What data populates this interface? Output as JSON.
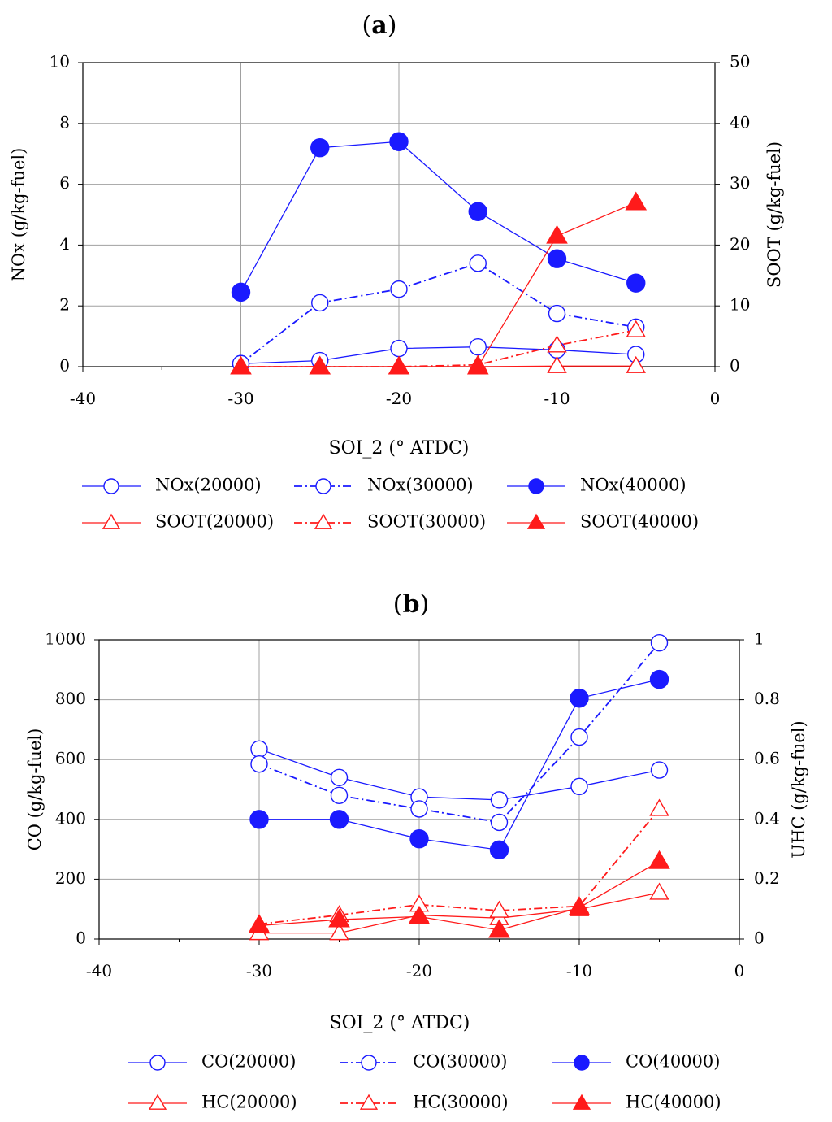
{
  "colors": {
    "blue": "#1a1aff",
    "red": "#ff1a1a",
    "grid": "#a0a0a0",
    "axis": "#000000"
  },
  "chart_data": [
    {
      "type": "line",
      "panel_label": "a",
      "xlabel": "SOI_2 (° ATDC)",
      "ylabel": "NOx (g/kg-fuel)",
      "y2label": "SOOT (g/kg-fuel)",
      "xlim": [
        -40,
        0
      ],
      "ylim": [
        0,
        10
      ],
      "y2lim": [
        0,
        50
      ],
      "xticks": [
        -40,
        -30,
        -20,
        -10,
        0
      ],
      "yticks": [
        0,
        2,
        4,
        6,
        8,
        10
      ],
      "y2ticks": [
        0,
        10,
        20,
        30,
        40,
        50
      ],
      "x": [
        -30,
        -25,
        -20,
        -15,
        -10,
        -5
      ],
      "series": [
        {
          "name": "NOx(20000)",
          "axis": "left",
          "color": "blue",
          "marker": "circle-open",
          "dash": "solid",
          "values": [
            0.1,
            0.2,
            0.6,
            0.65,
            0.55,
            0.4
          ]
        },
        {
          "name": "NOx(30000)",
          "axis": "left",
          "color": "blue",
          "marker": "circle-open",
          "dash": "dashdot",
          "values": [
            0.1,
            2.1,
            2.55,
            3.4,
            1.75,
            1.3
          ]
        },
        {
          "name": "NOx(40000)",
          "axis": "left",
          "color": "blue",
          "marker": "circle-filled",
          "dash": "solid",
          "values": [
            2.45,
            7.2,
            7.4,
            5.1,
            3.55,
            2.75
          ]
        },
        {
          "name": "SOOT(20000)",
          "axis": "right",
          "color": "red",
          "marker": "triangle-open",
          "dash": "solid",
          "values": [
            0,
            0,
            0,
            0,
            0.1,
            0.1
          ]
        },
        {
          "name": "SOOT(30000)",
          "axis": "right",
          "color": "red",
          "marker": "triangle-open",
          "dash": "dashdot",
          "values": [
            0,
            0,
            0,
            0.3,
            3.5,
            6
          ]
        },
        {
          "name": "SOOT(40000)",
          "axis": "right",
          "color": "red",
          "marker": "triangle-filled",
          "dash": "solid",
          "values": [
            0,
            0,
            0,
            0,
            21.5,
            27
          ]
        }
      ]
    },
    {
      "type": "line",
      "panel_label": "b",
      "xlabel": "SOI_2  (° ATDC)",
      "ylabel": "CO (g/kg-fuel)",
      "y2label": "UHC  (g/kg-fuel)",
      "xlim": [
        -40,
        0
      ],
      "ylim": [
        0,
        1000
      ],
      "y2lim": [
        0,
        1
      ],
      "xticks": [
        -40,
        -30,
        -20,
        -10,
        0
      ],
      "yticks": [
        0,
        200,
        400,
        600,
        800,
        1000
      ],
      "y2ticks": [
        0,
        0.2,
        0.4,
        0.6,
        0.8,
        1
      ],
      "x": [
        -30,
        -25,
        -20,
        -15,
        -10,
        -5
      ],
      "series": [
        {
          "name": "CO(20000)",
          "axis": "left",
          "color": "blue",
          "marker": "circle-open",
          "dash": "solid",
          "values": [
            635,
            540,
            475,
            465,
            510,
            565
          ]
        },
        {
          "name": "CO(30000)",
          "axis": "left",
          "color": "blue",
          "marker": "circle-open",
          "dash": "dashdot",
          "values": [
            585,
            480,
            435,
            390,
            675,
            990
          ]
        },
        {
          "name": "CO(40000)",
          "axis": "left",
          "color": "blue",
          "marker": "circle-filled",
          "dash": "solid",
          "values": [
            400,
            400,
            335,
            298,
            805,
            868
          ]
        },
        {
          "name": "HC(20000)",
          "axis": "right",
          "color": "red",
          "marker": "triangle-open",
          "dash": "solid",
          "values": [
            0.02,
            0.02,
            0.08,
            0.07,
            0.1,
            0.155
          ]
        },
        {
          "name": "HC(30000)",
          "axis": "right",
          "color": "red",
          "marker": "triangle-open",
          "dash": "dashdot",
          "values": [
            0.05,
            0.08,
            0.115,
            0.095,
            0.11,
            0.435
          ]
        },
        {
          "name": "HC(40000)",
          "axis": "right",
          "color": "red",
          "marker": "triangle-filled",
          "dash": "solid",
          "values": [
            0.045,
            0.065,
            0.075,
            0.03,
            0.105,
            0.26
          ]
        }
      ]
    }
  ]
}
